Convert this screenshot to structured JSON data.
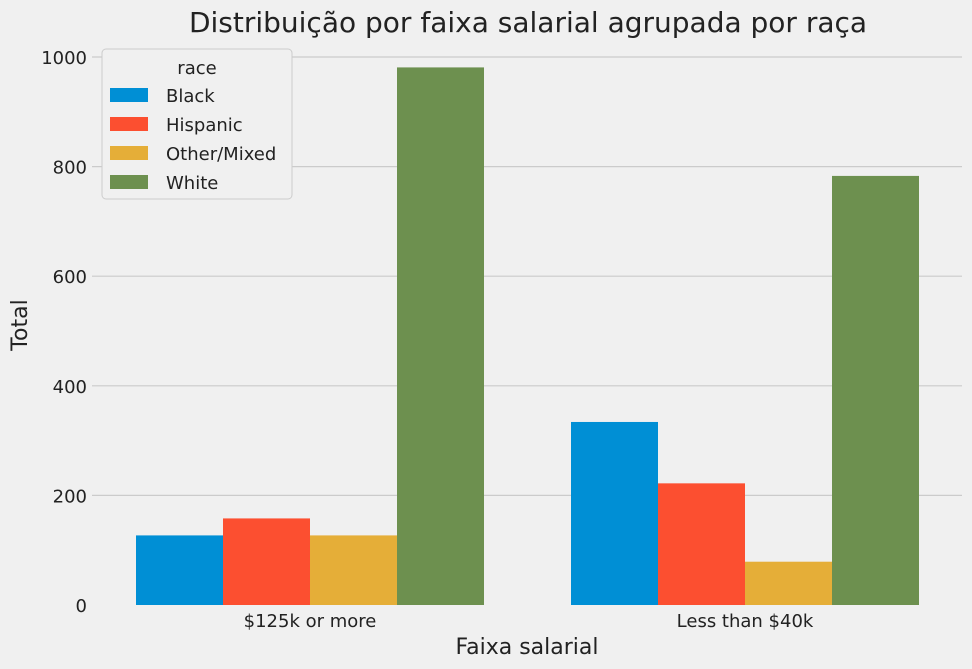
{
  "chart_data": {
    "type": "bar",
    "title": "Distribuição por faixa salarial agrupada por raça",
    "xlabel": "Faixa salarial",
    "ylabel": "Total",
    "categories": [
      "$125k or more",
      "Less than $40k"
    ],
    "series": [
      {
        "name": "Black",
        "color": "#008fd5",
        "values": [
          127,
          334
        ]
      },
      {
        "name": "Hispanic",
        "color": "#fc4f30",
        "values": [
          158,
          222
        ]
      },
      {
        "name": "Other/Mixed",
        "color": "#e5ae38",
        "values": [
          127,
          79
        ]
      },
      {
        "name": "White",
        "color": "#6d904f",
        "values": [
          981,
          783
        ]
      }
    ],
    "ylim": [
      0,
      1030
    ],
    "yticks": [
      0,
      200,
      400,
      600,
      800,
      1000
    ],
    "grid": true,
    "legend": {
      "title": "race",
      "placement": "top-left"
    }
  }
}
